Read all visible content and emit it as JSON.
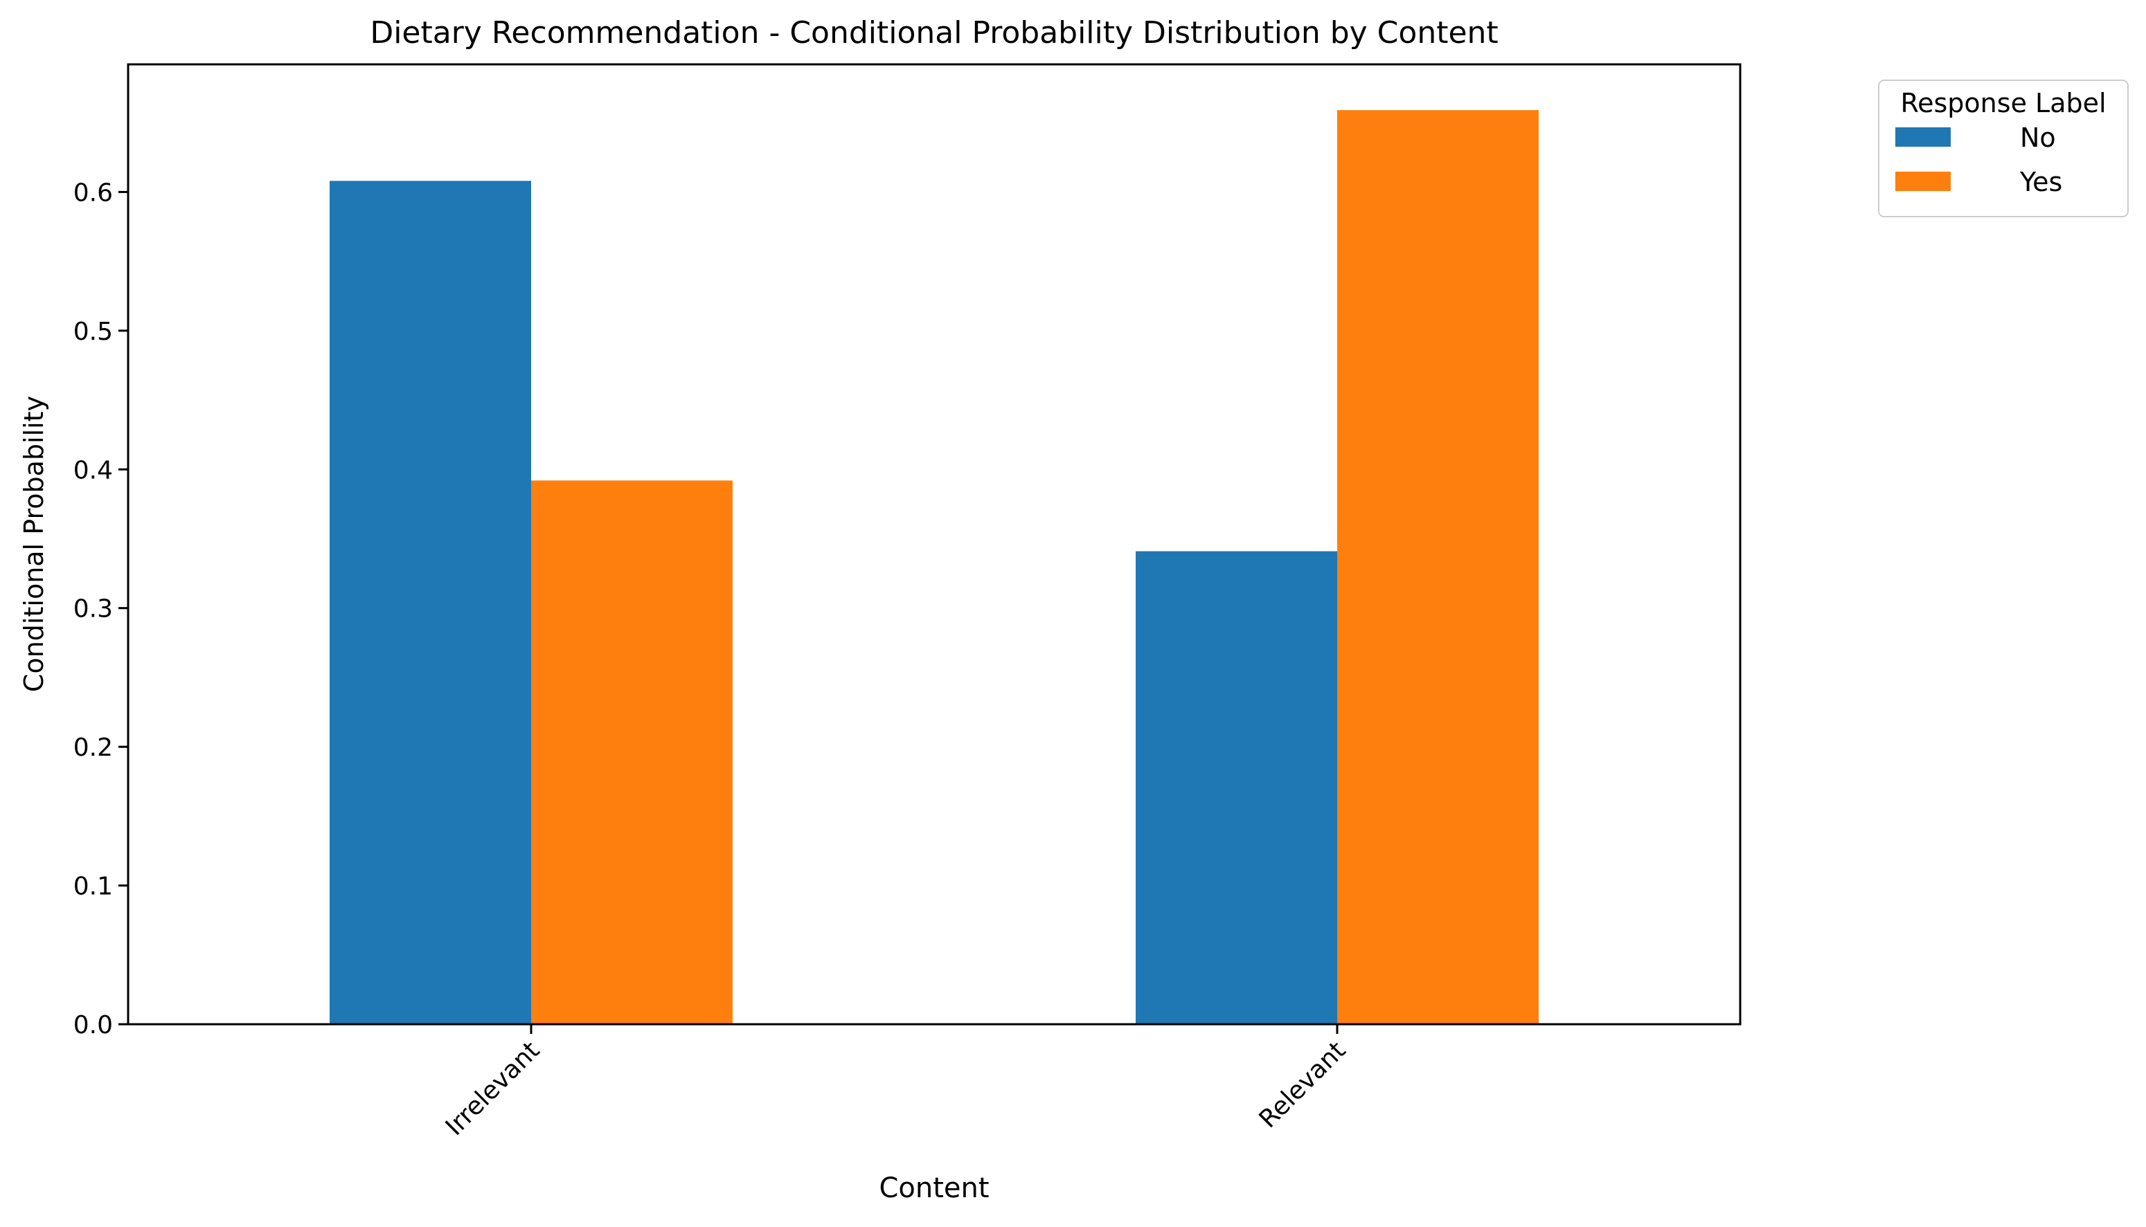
{
  "chart_data": {
    "type": "bar",
    "title": "Dietary Recommendation - Conditional Probability Distribution by Content",
    "xlabel": "Content",
    "ylabel": "Conditional Probability",
    "categories": [
      "Irrelevant",
      "Relevant"
    ],
    "series": [
      {
        "name": "No",
        "color": "#1f77b4",
        "values": [
          0.608,
          0.341
        ]
      },
      {
        "name": "Yes",
        "color": "#ff7f0e",
        "values": [
          0.392,
          0.659
        ]
      }
    ],
    "ylim": [
      0,
      0.692
    ],
    "yticks": [
      0.0,
      0.1,
      0.2,
      0.3,
      0.4,
      0.5,
      0.6
    ],
    "ytick_labels": [
      "0.0",
      "0.1",
      "0.2",
      "0.3",
      "0.4",
      "0.5",
      "0.6"
    ],
    "grid": false,
    "legend": {
      "title": "Response Label",
      "placement": "outside-top-right"
    },
    "xtick_rotation": -45
  }
}
